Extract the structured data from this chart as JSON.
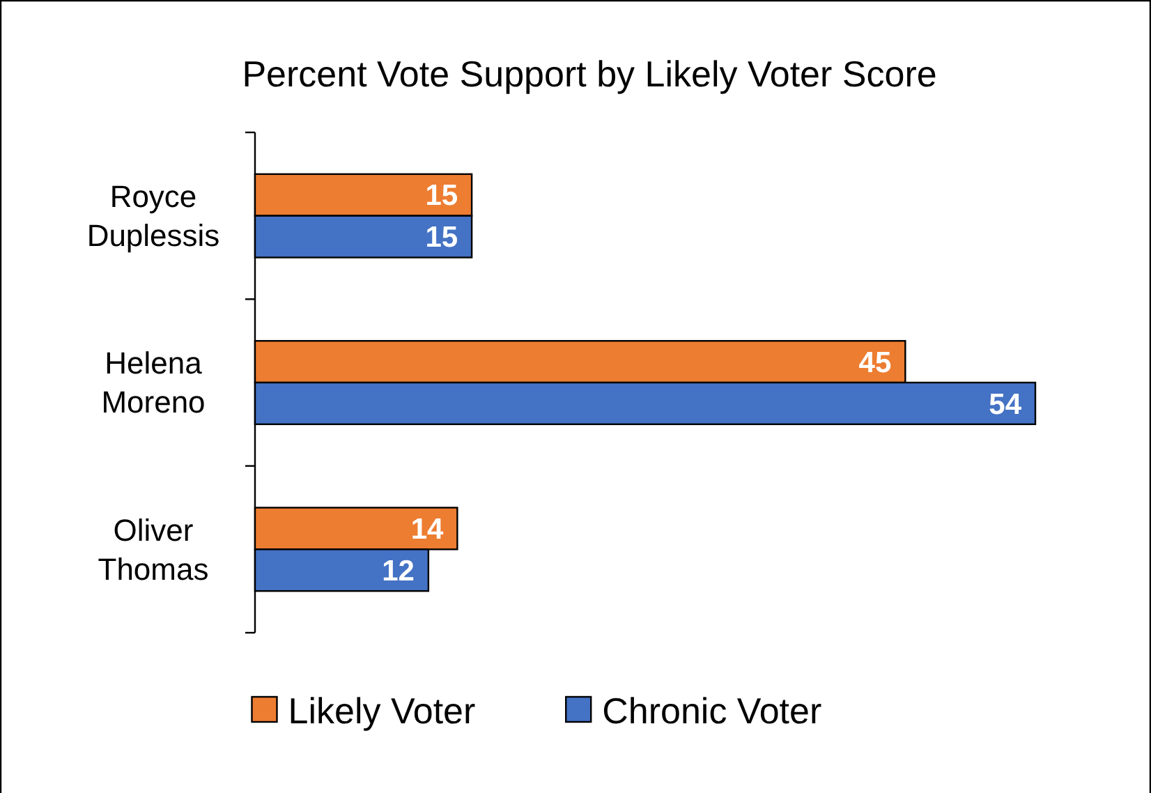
{
  "chart_data": {
    "type": "bar",
    "orientation": "horizontal",
    "title": "Percent Vote Support by Likely Voter Score",
    "categories": [
      "Royce Duplessis",
      "Helena Moreno",
      "Oliver Thomas"
    ],
    "series": [
      {
        "name": "Likely Voter",
        "color": "#ed7d31",
        "values": [
          15,
          45,
          14
        ]
      },
      {
        "name": "Chronic Voter",
        "color": "#4472c4",
        "values": [
          15,
          54,
          12
        ]
      }
    ],
    "data_labels": true,
    "legend": "bottom"
  }
}
